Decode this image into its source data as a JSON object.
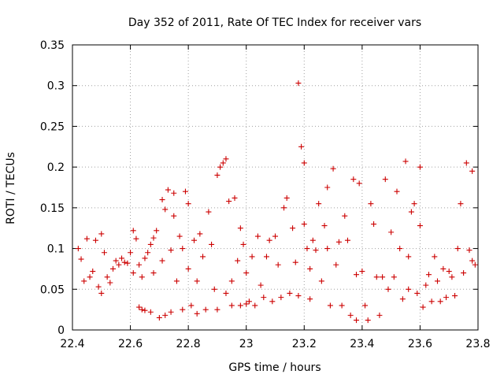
{
  "chart_data": {
    "type": "scatter",
    "title": "Day 352 of 2011, Rate Of TEC Index for receiver vars",
    "xlabel": "GPS time / hours",
    "ylabel": "ROTI / TECUs",
    "xlim": [
      22.4,
      23.8
    ],
    "ylim": [
      0,
      0.35
    ],
    "xticks": [
      "22.4",
      "22.6",
      "22.8",
      "23",
      "23.2",
      "23.4",
      "23.6",
      "23.8"
    ],
    "yticks": [
      "0",
      "0.05",
      "0.1",
      "0.15",
      "0.2",
      "0.25",
      "0.3",
      "0.35"
    ],
    "grid": true,
    "marker": "plus",
    "color": "#cc0000",
    "series": [
      {
        "name": "",
        "points": [
          [
            22.42,
            0.1
          ],
          [
            22.43,
            0.087
          ],
          [
            22.44,
            0.06
          ],
          [
            22.45,
            0.112
          ],
          [
            22.46,
            0.065
          ],
          [
            22.47,
            0.072
          ],
          [
            22.48,
            0.11
          ],
          [
            22.49,
            0.053
          ],
          [
            22.5,
            0.118
          ],
          [
            22.5,
            0.045
          ],
          [
            22.51,
            0.095
          ],
          [
            22.52,
            0.065
          ],
          [
            22.53,
            0.058
          ],
          [
            22.54,
            0.075
          ],
          [
            22.55,
            0.085
          ],
          [
            22.56,
            0.08
          ],
          [
            22.57,
            0.088
          ],
          [
            22.58,
            0.083
          ],
          [
            22.59,
            0.082
          ],
          [
            22.6,
            0.095
          ],
          [
            22.61,
            0.122
          ],
          [
            22.61,
            0.07
          ],
          [
            22.62,
            0.112
          ],
          [
            22.63,
            0.08
          ],
          [
            22.64,
            0.065
          ],
          [
            22.65,
            0.088
          ],
          [
            22.63,
            0.028
          ],
          [
            22.64,
            0.025
          ],
          [
            22.65,
            0.024
          ],
          [
            22.66,
            0.095
          ],
          [
            22.67,
            0.105
          ],
          [
            22.67,
            0.022
          ],
          [
            22.68,
            0.07
          ],
          [
            22.68,
            0.113
          ],
          [
            22.69,
            0.122
          ],
          [
            22.7,
            0.015
          ],
          [
            22.71,
            0.085
          ],
          [
            22.71,
            0.16
          ],
          [
            22.72,
            0.148
          ],
          [
            22.72,
            0.018
          ],
          [
            22.73,
            0.172
          ],
          [
            22.74,
            0.098
          ],
          [
            22.74,
            0.022
          ],
          [
            22.75,
            0.168
          ],
          [
            22.75,
            0.14
          ],
          [
            22.76,
            0.06
          ],
          [
            22.77,
            0.115
          ],
          [
            22.78,
            0.1
          ],
          [
            22.78,
            0.025
          ],
          [
            22.79,
            0.17
          ],
          [
            22.8,
            0.155
          ],
          [
            22.8,
            0.075
          ],
          [
            22.81,
            0.03
          ],
          [
            22.82,
            0.11
          ],
          [
            22.83,
            0.06
          ],
          [
            22.83,
            0.02
          ],
          [
            22.84,
            0.118
          ],
          [
            22.85,
            0.09
          ],
          [
            22.86,
            0.025
          ],
          [
            22.87,
            0.145
          ],
          [
            22.88,
            0.105
          ],
          [
            22.89,
            0.05
          ],
          [
            22.9,
            0.19
          ],
          [
            22.9,
            0.025
          ],
          [
            22.91,
            0.2
          ],
          [
            22.92,
            0.205
          ],
          [
            22.93,
            0.21
          ],
          [
            22.93,
            0.045
          ],
          [
            22.94,
            0.158
          ],
          [
            22.95,
            0.06
          ],
          [
            22.95,
            0.03
          ],
          [
            22.96,
            0.162
          ],
          [
            22.97,
            0.085
          ],
          [
            22.98,
            0.125
          ],
          [
            22.98,
            0.03
          ],
          [
            22.99,
            0.105
          ],
          [
            23.0,
            0.07
          ],
          [
            23.0,
            0.032
          ],
          [
            23.01,
            0.035
          ],
          [
            23.02,
            0.09
          ],
          [
            23.03,
            0.03
          ],
          [
            23.04,
            0.115
          ],
          [
            23.05,
            0.055
          ],
          [
            23.06,
            0.04
          ],
          [
            23.07,
            0.09
          ],
          [
            23.08,
            0.11
          ],
          [
            23.09,
            0.035
          ],
          [
            23.1,
            0.115
          ],
          [
            23.11,
            0.08
          ],
          [
            23.12,
            0.04
          ],
          [
            23.13,
            0.15
          ],
          [
            23.14,
            0.162
          ],
          [
            23.15,
            0.045
          ],
          [
            23.16,
            0.125
          ],
          [
            23.17,
            0.083
          ],
          [
            23.18,
            0.303
          ],
          [
            23.18,
            0.042
          ],
          [
            23.19,
            0.225
          ],
          [
            23.2,
            0.205
          ],
          [
            23.2,
            0.13
          ],
          [
            23.21,
            0.1
          ],
          [
            23.22,
            0.075
          ],
          [
            23.22,
            0.038
          ],
          [
            23.23,
            0.11
          ],
          [
            23.24,
            0.098
          ],
          [
            23.25,
            0.155
          ],
          [
            23.26,
            0.06
          ],
          [
            23.27,
            0.128
          ],
          [
            23.28,
            0.175
          ],
          [
            23.28,
            0.1
          ],
          [
            23.29,
            0.03
          ],
          [
            23.3,
            0.198
          ],
          [
            23.31,
            0.08
          ],
          [
            23.32,
            0.108
          ],
          [
            23.33,
            0.03
          ],
          [
            23.34,
            0.14
          ],
          [
            23.35,
            0.11
          ],
          [
            23.36,
            0.018
          ],
          [
            23.37,
            0.185
          ],
          [
            23.38,
            0.068
          ],
          [
            23.38,
            0.012
          ],
          [
            23.39,
            0.18
          ],
          [
            23.4,
            0.072
          ],
          [
            23.41,
            0.03
          ],
          [
            23.42,
            0.012
          ],
          [
            23.43,
            0.155
          ],
          [
            23.44,
            0.13
          ],
          [
            23.45,
            0.065
          ],
          [
            23.46,
            0.018
          ],
          [
            23.47,
            0.065
          ],
          [
            23.48,
            0.185
          ],
          [
            23.49,
            0.05
          ],
          [
            23.5,
            0.12
          ],
          [
            23.51,
            0.065
          ],
          [
            23.52,
            0.17
          ],
          [
            23.53,
            0.1
          ],
          [
            23.54,
            0.038
          ],
          [
            23.55,
            0.207
          ],
          [
            23.56,
            0.09
          ],
          [
            23.56,
            0.05
          ],
          [
            23.57,
            0.145
          ],
          [
            23.58,
            0.155
          ],
          [
            23.59,
            0.045
          ],
          [
            23.6,
            0.2
          ],
          [
            23.6,
            0.128
          ],
          [
            23.61,
            0.028
          ],
          [
            23.62,
            0.055
          ],
          [
            23.63,
            0.068
          ],
          [
            23.64,
            0.035
          ],
          [
            23.65,
            0.09
          ],
          [
            23.66,
            0.06
          ],
          [
            23.67,
            0.035
          ],
          [
            23.68,
            0.075
          ],
          [
            23.69,
            0.04
          ],
          [
            23.7,
            0.072
          ],
          [
            23.71,
            0.065
          ],
          [
            23.72,
            0.042
          ],
          [
            23.73,
            0.1
          ],
          [
            23.74,
            0.155
          ],
          [
            23.75,
            0.07
          ],
          [
            23.76,
            0.205
          ],
          [
            23.77,
            0.098
          ],
          [
            23.78,
            0.195
          ],
          [
            23.78,
            0.085
          ],
          [
            23.79,
            0.08
          ]
        ]
      }
    ]
  }
}
